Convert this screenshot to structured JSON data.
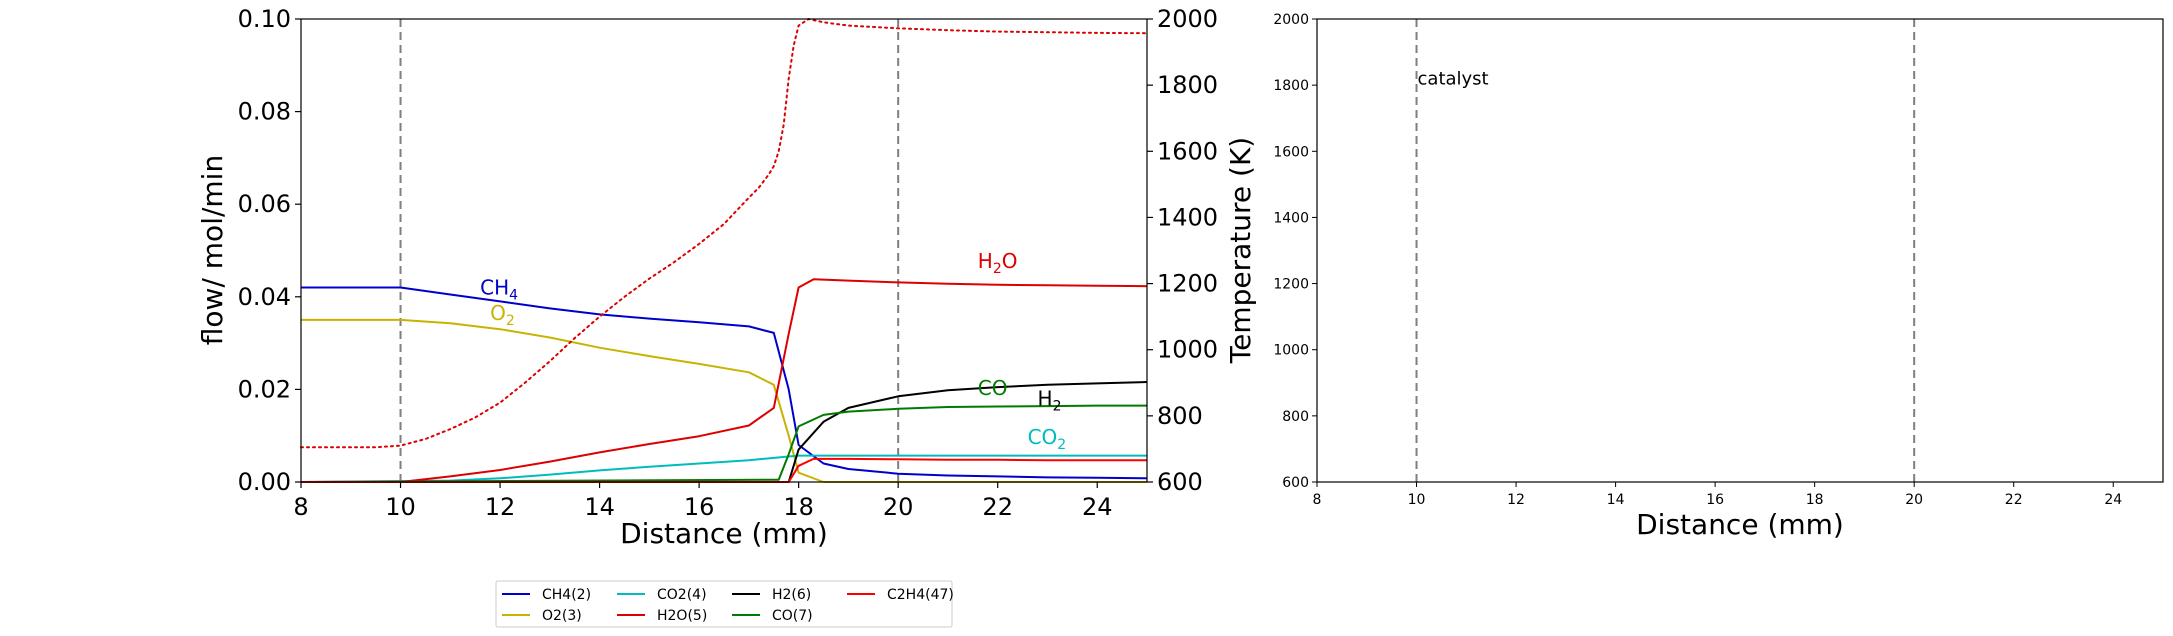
{
  "chart_data": [
    {
      "type": "line",
      "xlabel": "Distance (mm)",
      "ylabel": "flow/ mol/min",
      "ylabel_right": "Temperature (K)",
      "xlim": [
        8,
        25
      ],
      "ylim": [
        0,
        0.1
      ],
      "ylim_right": [
        600,
        2000
      ],
      "xticks": [
        "8",
        "10",
        "12",
        "14",
        "16",
        "18",
        "20",
        "22",
        "24"
      ],
      "yticks": [
        "0.00",
        "0.02",
        "0.04",
        "0.06",
        "0.08",
        "0.10"
      ],
      "yticks_right": [
        "600",
        "800",
        "1000",
        "1200",
        "1400",
        "1600",
        "1800",
        "2000"
      ],
      "vlines": [
        10,
        20
      ],
      "grid": false,
      "legend_placement": "below",
      "series": [
        {
          "name": "CH4(2)",
          "color": "#0000cc",
          "x": [
            8,
            10,
            11,
            12,
            13,
            14,
            15,
            16,
            17,
            17.5,
            17.8,
            18,
            18.5,
            19,
            20,
            21,
            22,
            23,
            24,
            25
          ],
          "y": [
            0.042,
            0.042,
            0.0405,
            0.039,
            0.0375,
            0.0362,
            0.0353,
            0.0345,
            0.0336,
            0.0322,
            0.02,
            0.008,
            0.004,
            0.0028,
            0.0018,
            0.0014,
            0.0012,
            0.001,
            0.0009,
            0.0008
          ]
        },
        {
          "name": "O2(3)",
          "color": "#c8b400",
          "x": [
            8,
            10,
            11,
            12,
            13,
            14,
            15,
            16,
            17,
            17.5,
            17.8,
            18,
            18.5,
            25
          ],
          "y": [
            0.035,
            0.035,
            0.0343,
            0.033,
            0.0312,
            0.029,
            0.0272,
            0.0255,
            0.0237,
            0.021,
            0.01,
            0.002,
            0.0,
            0.0
          ]
        },
        {
          "name": "CO2(4)",
          "color": "#00bcbc",
          "x": [
            8,
            11,
            12,
            13,
            14,
            15,
            16,
            17,
            17.8,
            18,
            19,
            20,
            21,
            22,
            23,
            24,
            25
          ],
          "y": [
            0.0,
            0.0003,
            0.0008,
            0.0016,
            0.0025,
            0.0033,
            0.004,
            0.0047,
            0.0055,
            0.0057,
            0.0057,
            0.0057,
            0.0057,
            0.0057,
            0.0057,
            0.0057,
            0.0057
          ]
        },
        {
          "name": "H2O(5)",
          "color": "#dd0000",
          "x": [
            8,
            10,
            11,
            12,
            13,
            14,
            15,
            16,
            17,
            17.5,
            17.8,
            18,
            18.3,
            19,
            20,
            21,
            22,
            23,
            24,
            25
          ],
          "y": [
            0.0,
            0.0,
            0.0012,
            0.0026,
            0.0044,
            0.0064,
            0.0082,
            0.0099,
            0.0122,
            0.016,
            0.032,
            0.042,
            0.0438,
            0.0435,
            0.0431,
            0.0428,
            0.0426,
            0.0425,
            0.0424,
            0.0423
          ]
        },
        {
          "name": "H2(6)",
          "color": "#000000",
          "x": [
            8,
            17.8,
            18,
            18.5,
            19,
            20,
            21,
            22,
            23,
            24,
            25
          ],
          "y": [
            0.0,
            0.0,
            0.007,
            0.013,
            0.016,
            0.0185,
            0.0198,
            0.0205,
            0.021,
            0.0213,
            0.0216
          ]
        },
        {
          "name": "CO(7)",
          "color": "#007a00",
          "x": [
            8,
            17.6,
            17.8,
            18,
            18.5,
            19,
            20,
            21,
            22,
            23,
            24,
            25
          ],
          "y": [
            0.0,
            0.0005,
            0.006,
            0.012,
            0.0145,
            0.0152,
            0.0158,
            0.0162,
            0.0163,
            0.0164,
            0.0165,
            0.0165
          ]
        },
        {
          "name": "C2H4(47)",
          "color": "#ff0000",
          "x": [
            8,
            17.8,
            18,
            18.3,
            19,
            20,
            21,
            22,
            23,
            24,
            25
          ],
          "y": [
            0.0,
            0.0,
            0.0035,
            0.005,
            0.005,
            0.0049,
            0.0048,
            0.0048,
            0.0047,
            0.0047,
            0.0047
          ]
        },
        {
          "name": "",
          "axis": "right",
          "style": "dotted",
          "color": "#dd0000",
          "x": [
            8,
            9.5,
            10,
            10.5,
            11,
            11.5,
            12,
            12.5,
            13,
            13.5,
            14,
            14.5,
            15,
            15.5,
            16,
            16.5,
            17,
            17.2,
            17.4,
            17.5,
            17.6,
            17.7,
            17.8,
            17.9,
            18,
            18.2,
            18.5,
            19,
            20,
            21,
            22,
            23,
            24,
            25
          ],
          "y": [
            705,
            705,
            710,
            730,
            760,
            795,
            840,
            900,
            965,
            1035,
            1100,
            1160,
            1215,
            1265,
            1320,
            1380,
            1460,
            1490,
            1530,
            1555,
            1600,
            1680,
            1820,
            1920,
            1980,
            2000,
            1990,
            1980,
            1972,
            1966,
            1962,
            1960,
            1958,
            1957
          ]
        }
      ],
      "annotations": [
        {
          "text": "CH",
          "sub": "4",
          "color": "#0000cc",
          "x": 11.6,
          "y": 0.0405
        },
        {
          "text": "O",
          "sub": "2",
          "color": "#c8b400",
          "x": 11.8,
          "y": 0.035
        },
        {
          "text": "H",
          "sub": "2",
          "after": "O",
          "color": "#dd0000",
          "x": 21.6,
          "y": 0.0462
        },
        {
          "text": "CO",
          "color": "#007a00",
          "x": 21.6,
          "y": 0.0188
        },
        {
          "text": "H",
          "sub": "2",
          "color": "#000000",
          "x": 22.8,
          "y": 0.0165
        },
        {
          "text": "CO",
          "sub": "2",
          "color": "#00bcbc",
          "x": 22.6,
          "y": 0.0082
        }
      ]
    },
    {
      "type": "line",
      "xlabel": "Distance (mm)",
      "xlim": [
        8,
        25
      ],
      "ylim": [
        600,
        2000
      ],
      "xticks": [
        "8",
        "10",
        "12",
        "14",
        "16",
        "18",
        "20",
        "22",
        "24"
      ],
      "yticks": [
        "600",
        "800",
        "1000",
        "1200",
        "1400",
        "1600",
        "1800",
        "2000"
      ],
      "vlines": [
        10,
        20
      ],
      "grid": false,
      "annotations": [
        {
          "text": "catalyst",
          "color": "#000000",
          "x": 10,
          "y": 1820
        }
      ],
      "series": []
    }
  ]
}
